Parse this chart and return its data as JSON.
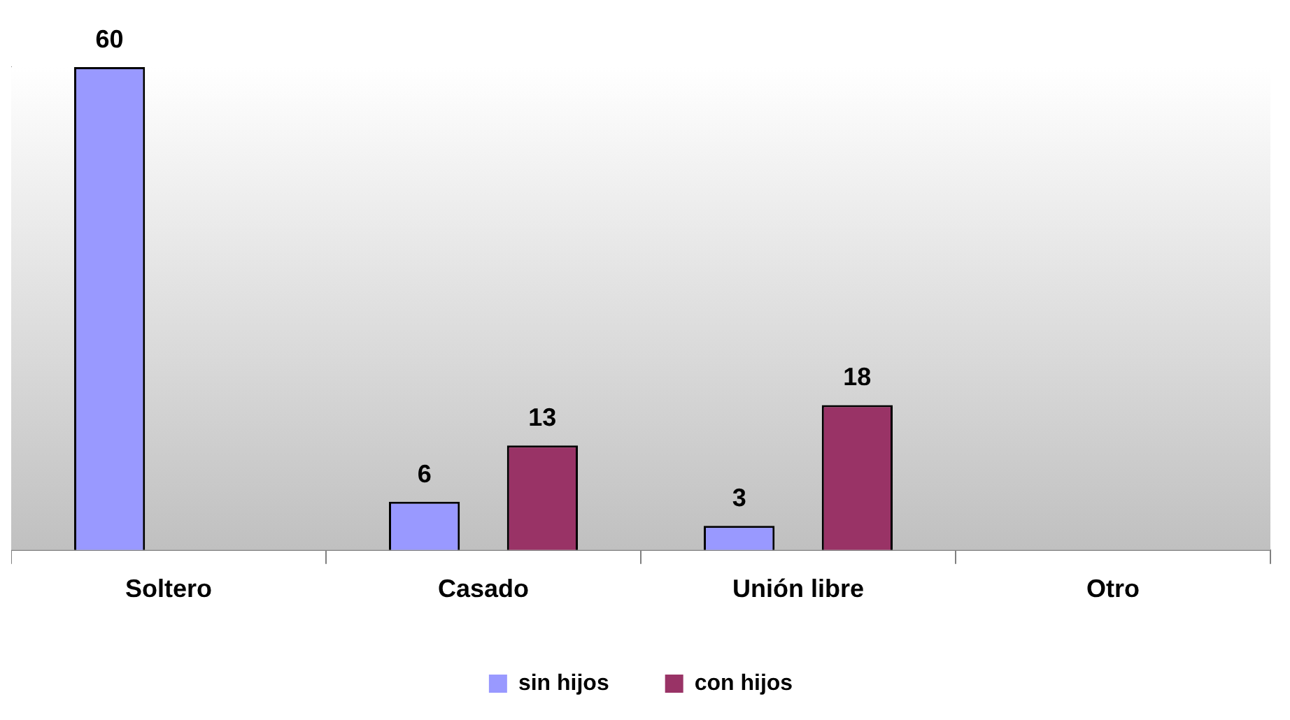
{
  "chart_data": {
    "type": "bar",
    "categories": [
      "Soltero",
      "Casado",
      "Unión libre",
      "Otro"
    ],
    "series": [
      {
        "name": "sin hijos",
        "color": "#9999ff",
        "values": [
          60,
          6,
          3,
          null
        ]
      },
      {
        "name": "con hijos",
        "color": "#993366",
        "values": [
          null,
          13,
          18,
          null
        ]
      }
    ],
    "data_labels": true,
    "legend": "bottom",
    "tick_labels": "x",
    "grid": false
  }
}
